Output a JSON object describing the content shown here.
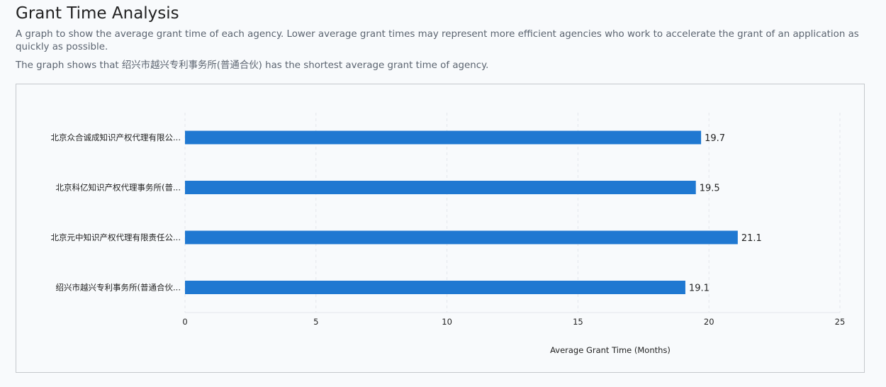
{
  "header": {
    "title": "Grant Time Analysis",
    "description": "A graph to show the average grant time of each agency. Lower average grant times may represent more efficient agencies who work to accelerate the grant of an application as quickly as possible.",
    "summary": "The graph shows that 绍兴市越兴专利事务所(普通合伙) has the shortest average grant time of agency."
  },
  "colors": {
    "bar": "#1f78d1",
    "grid": "#e3e7ec"
  },
  "chart_data": {
    "type": "bar",
    "orientation": "horizontal",
    "categories": [
      "北京众合诚成知识产权代理有限公...",
      "北京科亿知识产权代理事务所(普...",
      "北京元中知识产权代理有限责任公...",
      "绍兴市越兴专利事务所(普通合伙..."
    ],
    "values": [
      19.7,
      19.5,
      21.1,
      19.1
    ],
    "value_labels": [
      "19.7",
      "19.5",
      "21.1",
      "19.1"
    ],
    "xlabel": "Average Grant Time (Months)",
    "ylabel": "",
    "xlim": [
      0,
      25
    ],
    "xticks": [
      0,
      5,
      10,
      15,
      20,
      25
    ],
    "xtick_labels": [
      "0",
      "5",
      "10",
      "15",
      "20",
      "25"
    ],
    "grid": true
  }
}
